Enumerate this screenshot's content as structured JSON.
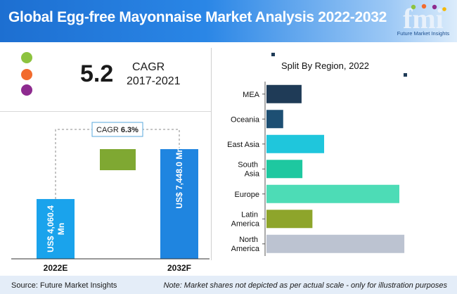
{
  "title": "Global Egg-free Mayonnaise Market Analysis 2022-2032",
  "logo": {
    "mark": "fmi",
    "name": "Future Market Insights"
  },
  "cagr_summary": {
    "value": "5.2",
    "label": "CAGR",
    "period": "2017-2021"
  },
  "footer": {
    "source": "Source: Future Market Insights",
    "note": "Note: Market shares not depicted as per actual scale - only for illustration purposes"
  },
  "colors": {
    "header": "#1d6fd1",
    "bar_2022": "#1aa3ec",
    "bar_2032": "#1f85e0",
    "growth": "#7fa832",
    "dot_green": "#8dc33f",
    "dot_orange": "#f26b2d",
    "dot_purple": "#8e2b8f"
  },
  "chart_data": [
    {
      "type": "bar",
      "title": "",
      "categories": [
        "2022E",
        "2032F"
      ],
      "values": [
        4060.4,
        7448.0
      ],
      "value_labels": [
        "US$ 4,060.4 Mn",
        "US$ 7,448.0 Mn"
      ],
      "annotation": {
        "label": "CAGR",
        "value": "6.3%"
      },
      "ylim": [
        0,
        8500
      ]
    },
    {
      "type": "bar",
      "orientation": "horizontal",
      "title": "Split By Region, 2022",
      "categories": [
        "MEA",
        "Oceania",
        "East Asia",
        "South Asia",
        "Europe",
        "Latin America",
        "North America"
      ],
      "category_lines": [
        [
          "MEA"
        ],
        [
          "Oceania"
        ],
        [
          "East Asia"
        ],
        [
          "South",
          "Asia"
        ],
        [
          "Europe"
        ],
        [
          "Latin",
          "America"
        ],
        [
          "North",
          "America"
        ]
      ],
      "values": [
        4.2,
        2.0,
        6.9,
        4.3,
        15.9,
        5.5,
        16.5
      ],
      "colors": [
        "#1f3b57",
        "#1d4f73",
        "#1fc6dc",
        "#1ec8a0",
        "#4ddcb6",
        "#8ea52b",
        "#bcc3d1"
      ],
      "xlim": [
        0,
        17.5
      ]
    }
  ]
}
